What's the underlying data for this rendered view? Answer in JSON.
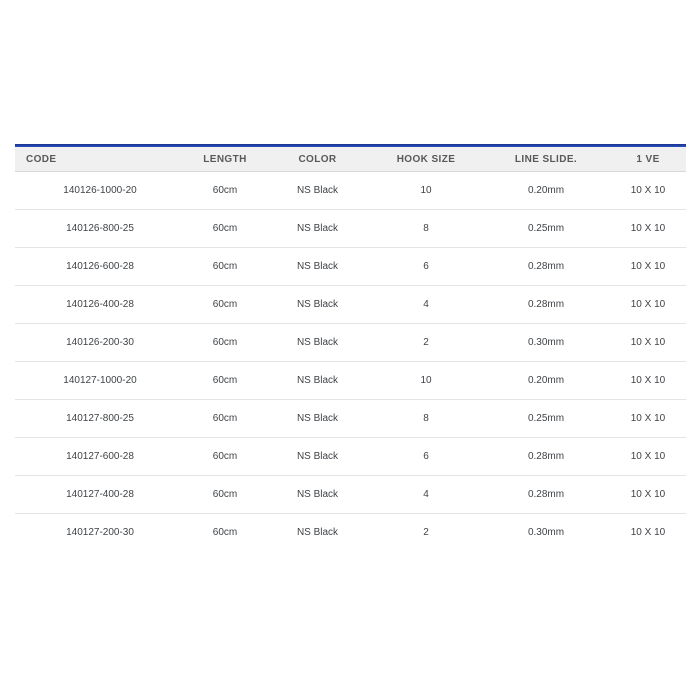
{
  "table": {
    "columns": [
      {
        "key": "code",
        "label": "CODE"
      },
      {
        "key": "length",
        "label": "LENGTH"
      },
      {
        "key": "color",
        "label": "COLOR"
      },
      {
        "key": "hook-size",
        "label": "HOOK SIZE"
      },
      {
        "key": "line-slide",
        "label": "LINE SLIDE."
      },
      {
        "key": "ve",
        "label": "1 VE"
      }
    ],
    "rows": [
      [
        "140126-1000-20",
        "60cm",
        "NS Black",
        "10",
        "0.20mm",
        "10 X 10"
      ],
      [
        "140126-800-25",
        "60cm",
        "NS Black",
        "8",
        "0.25mm",
        "10 X 10"
      ],
      [
        "140126-600-28",
        "60cm",
        "NS Black",
        "6",
        "0.28mm",
        "10 X 10"
      ],
      [
        "140126-400-28",
        "60cm",
        "NS Black",
        "4",
        "0.28mm",
        "10 X 10"
      ],
      [
        "140126-200-30",
        "60cm",
        "NS Black",
        "2",
        "0.30mm",
        "10 X 10"
      ],
      [
        "140127-1000-20",
        "60cm",
        "NS Black",
        "10",
        "0.20mm",
        "10 X 10"
      ],
      [
        "140127-800-25",
        "60cm",
        "NS Black",
        "8",
        "0.25mm",
        "10 X 10"
      ],
      [
        "140127-600-28",
        "60cm",
        "NS Black",
        "6",
        "0.28mm",
        "10 X 10"
      ],
      [
        "140127-400-28",
        "60cm",
        "NS Black",
        "4",
        "0.28mm",
        "10 X 10"
      ],
      [
        "140127-200-30",
        "60cm",
        "NS Black",
        "2",
        "0.30mm",
        "10 X 10"
      ]
    ]
  },
  "colors": {
    "accent_blue": "#2242a8",
    "header_bg": "#f0f0f1",
    "header_text": "#58595b",
    "row_text": "#3f4347",
    "row_separator": "#e4e4e4"
  }
}
